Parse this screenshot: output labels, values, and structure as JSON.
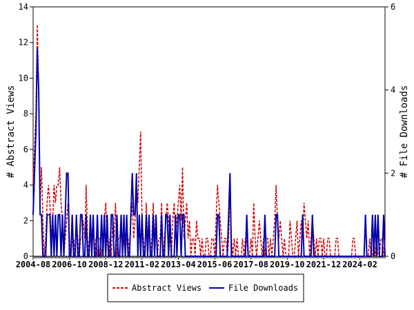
{
  "chart_data": {
    "type": "line",
    "ylabel": "# Abstract Views",
    "y2label": "# File Downloads",
    "ylim": [
      0,
      14
    ],
    "yticks": [
      0,
      2,
      4,
      6,
      8,
      10,
      12,
      14
    ],
    "y2lim": [
      0,
      6
    ],
    "y2ticks": [
      0,
      2,
      4,
      6
    ],
    "legend": "bottom",
    "x": [
      "2004-08",
      "2004-09",
      "2004-10",
      "2004-11",
      "2004-12",
      "2005-01",
      "2005-02",
      "2005-03",
      "2005-04",
      "2005-05",
      "2005-06",
      "2005-07",
      "2005-08",
      "2005-09",
      "2005-10",
      "2005-11",
      "2005-12",
      "2006-01",
      "2006-02",
      "2006-03",
      "2006-04",
      "2006-05",
      "2006-06",
      "2006-07",
      "2006-08",
      "2006-09",
      "2006-10",
      "2006-11",
      "2006-12",
      "2007-01",
      "2007-02",
      "2007-03",
      "2007-04",
      "2007-05",
      "2007-06",
      "2007-07",
      "2007-08",
      "2007-09",
      "2007-10",
      "2007-11",
      "2007-12",
      "2008-01",
      "2008-02",
      "2008-03",
      "2008-04",
      "2008-05",
      "2008-06",
      "2008-07",
      "2008-08",
      "2008-09",
      "2008-10",
      "2008-11",
      "2008-12",
      "2009-01",
      "2009-02",
      "2009-03",
      "2009-04",
      "2009-05",
      "2009-06",
      "2009-07",
      "2009-08",
      "2009-09",
      "2009-10",
      "2009-11",
      "2009-12",
      "2010-01",
      "2010-02",
      "2010-03",
      "2010-04",
      "2010-05",
      "2010-06",
      "2010-07",
      "2010-08",
      "2010-09",
      "2010-10",
      "2010-11",
      "2010-12",
      "2011-01",
      "2011-02",
      "2011-03",
      "2011-04",
      "2011-05",
      "2011-06",
      "2011-07",
      "2011-08",
      "2011-09",
      "2011-10",
      "2011-11",
      "2011-12",
      "2012-01",
      "2012-02",
      "2012-03",
      "2012-04",
      "2012-05",
      "2012-06",
      "2012-07",
      "2012-08",
      "2012-09",
      "2012-10",
      "2012-11",
      "2012-12",
      "2013-01",
      "2013-02",
      "2013-03",
      "2013-04",
      "2013-05",
      "2013-06",
      "2013-07",
      "2013-08",
      "2013-09",
      "2013-10",
      "2013-11",
      "2013-12",
      "2014-01",
      "2014-02",
      "2014-03",
      "2014-04",
      "2014-05",
      "2014-06",
      "2014-07",
      "2014-08",
      "2014-09",
      "2014-10",
      "2014-11",
      "2014-12",
      "2015-01",
      "2015-02",
      "2015-03",
      "2015-04",
      "2015-05",
      "2015-06",
      "2015-07",
      "2015-08",
      "2015-09",
      "2015-10",
      "2015-11",
      "2015-12",
      "2016-01",
      "2016-02",
      "2016-03",
      "2016-04",
      "2016-05",
      "2016-06",
      "2016-07",
      "2016-08",
      "2016-09",
      "2016-10",
      "2016-11",
      "2016-12",
      "2017-01",
      "2017-02",
      "2017-03",
      "2017-04",
      "2017-05",
      "2017-06",
      "2017-07",
      "2017-08",
      "2017-09",
      "2017-10",
      "2017-11",
      "2017-12",
      "2018-01",
      "2018-02",
      "2018-03",
      "2018-04",
      "2018-05",
      "2018-06",
      "2018-07",
      "2018-08",
      "2018-09",
      "2018-10",
      "2018-11",
      "2018-12",
      "2019-01",
      "2019-02",
      "2019-03",
      "2019-04",
      "2019-05",
      "2019-06",
      "2019-07",
      "2019-08",
      "2019-09",
      "2019-10",
      "2019-11",
      "2019-12",
      "2020-01",
      "2020-02",
      "2020-03",
      "2020-04",
      "2020-05",
      "2020-06",
      "2020-07",
      "2020-08",
      "2020-09",
      "2020-10",
      "2020-11",
      "2020-12",
      "2021-01",
      "2021-02",
      "2021-03",
      "2021-04",
      "2021-05",
      "2021-06",
      "2021-07",
      "2021-08",
      "2021-09",
      "2021-10",
      "2021-11",
      "2021-12",
      "2022-01",
      "2022-02",
      "2022-03",
      "2022-04",
      "2022-05",
      "2022-06",
      "2022-07",
      "2022-08",
      "2022-09",
      "2022-10",
      "2022-11",
      "2022-12",
      "2023-01",
      "2023-02",
      "2023-03",
      "2023-04",
      "2023-05",
      "2023-06",
      "2023-07",
      "2023-08",
      "2023-09",
      "2023-10",
      "2023-11",
      "2023-12",
      "2024-01",
      "2024-02",
      "2024-03",
      "2024-04",
      "2024-05",
      "2024-06",
      "2024-07",
      "2024-08",
      "2024-09",
      "2024-10",
      "2024-11",
      "2024-12",
      "2025-01",
      "2025-02",
      "2025-03",
      "2025-04",
      "2025-05",
      "2025-06",
      "2025-07",
      "2025-08"
    ],
    "series": [
      {
        "name": "Abstract Views",
        "color": "#cc0000",
        "dashed": true,
        "values": [
          4,
          6,
          8,
          13,
          9,
          3,
          5,
          2,
          0,
          1,
          3,
          4,
          3,
          1,
          2,
          4,
          3,
          4,
          4,
          5,
          3,
          2,
          0,
          1,
          2,
          3,
          1,
          0,
          1,
          1,
          0,
          2,
          1,
          0,
          1,
          1,
          2,
          1,
          4,
          1,
          0,
          1,
          1,
          2,
          0,
          1,
          0,
          1,
          1,
          0,
          1,
          2,
          3,
          1,
          0,
          1,
          0,
          2,
          1,
          3,
          0,
          1,
          1,
          2,
          0,
          1,
          0,
          1,
          1,
          0,
          2,
          3,
          1,
          2,
          4,
          3,
          5,
          7,
          2,
          1,
          0,
          3,
          1,
          2,
          0,
          1,
          3,
          1,
          2,
          0,
          1,
          1,
          3,
          0,
          1,
          2,
          3,
          2,
          1,
          0,
          2,
          3,
          1,
          2,
          3,
          4,
          2,
          5,
          1,
          2,
          3,
          1,
          2,
          0,
          1,
          1,
          0,
          2,
          1,
          1,
          0,
          1,
          0,
          0,
          1,
          1,
          0,
          0,
          1,
          1,
          0,
          2,
          4,
          3,
          2,
          1,
          0,
          1,
          1,
          0,
          1,
          4,
          1,
          0,
          1,
          0,
          1,
          0,
          0,
          0,
          1,
          0,
          1,
          1,
          0,
          0,
          1,
          0,
          3,
          1,
          0,
          1,
          2,
          1,
          0,
          1,
          0,
          1,
          1,
          0,
          1,
          0,
          1,
          2,
          4,
          2,
          1,
          2,
          1,
          0,
          1,
          0,
          0,
          0,
          2,
          1,
          0,
          0,
          1,
          2,
          0,
          1,
          2,
          1,
          3,
          2,
          1,
          2,
          0,
          1,
          2,
          1,
          0,
          1,
          0,
          1,
          1,
          0,
          1,
          0,
          0,
          1,
          1,
          0,
          0,
          0,
          0,
          1,
          1,
          0,
          0,
          0,
          0,
          0,
          0,
          0,
          0,
          0,
          0,
          1,
          1,
          0,
          0,
          0,
          0,
          0,
          0,
          0,
          0,
          0,
          0,
          1,
          0,
          0,
          1,
          0,
          1,
          0,
          0,
          1,
          1,
          0,
          1
        ]
      },
      {
        "name": "File Downloads",
        "color": "#0000aa",
        "dashed": false,
        "axis": "y2",
        "values": [
          1,
          2,
          3,
          5,
          4,
          1,
          1,
          0,
          0,
          0,
          1,
          1,
          1,
          0,
          1,
          0,
          1,
          0,
          1,
          1,
          0,
          1,
          0,
          1,
          2,
          2,
          0,
          0,
          1,
          0,
          0,
          1,
          0,
          0,
          1,
          1,
          0,
          0,
          1,
          0,
          0,
          1,
          0,
          1,
          0,
          0,
          1,
          0,
          0,
          1,
          0,
          1,
          0,
          1,
          0,
          0,
          1,
          1,
          0,
          0,
          1,
          0,
          0,
          1,
          0,
          1,
          0,
          1,
          0,
          0,
          1,
          2,
          1,
          1,
          2,
          0,
          1,
          0,
          1,
          0,
          0,
          1,
          0,
          1,
          0,
          0,
          1,
          0,
          1,
          0,
          0,
          0,
          1,
          0,
          0,
          1,
          1,
          0,
          1,
          0,
          0,
          0,
          1,
          0,
          1,
          1,
          0,
          1,
          1,
          0,
          0,
          0,
          0,
          0,
          0,
          0,
          0,
          0,
          0,
          0,
          0,
          0,
          0,
          0,
          0,
          0,
          0,
          0,
          0,
          0,
          0,
          0,
          1,
          1,
          0,
          0,
          0,
          0,
          0,
          0,
          1,
          2,
          0,
          0,
          0,
          0,
          0,
          0,
          0,
          0,
          0,
          0,
          0,
          1,
          0,
          0,
          0,
          0,
          0,
          0,
          0,
          0,
          0,
          0,
          0,
          0,
          1,
          0,
          0,
          0,
          0,
          0,
          0,
          0,
          1,
          1,
          0,
          0,
          0,
          0,
          0,
          0,
          0,
          0,
          0,
          0,
          0,
          0,
          0,
          0,
          0,
          0,
          0,
          1,
          0,
          0,
          0,
          0,
          0,
          0,
          1,
          0,
          0,
          0,
          0,
          0,
          0,
          0,
          0,
          0,
          0,
          0,
          0,
          0,
          0,
          0,
          0,
          0,
          0,
          0,
          0,
          0,
          0,
          0,
          0,
          0,
          0,
          0,
          0,
          0,
          0,
          0,
          0,
          0,
          0,
          0,
          0,
          0,
          1,
          0,
          0,
          0,
          0,
          1,
          0,
          1,
          0,
          1,
          0,
          0,
          0,
          1,
          0
        ]
      }
    ]
  }
}
